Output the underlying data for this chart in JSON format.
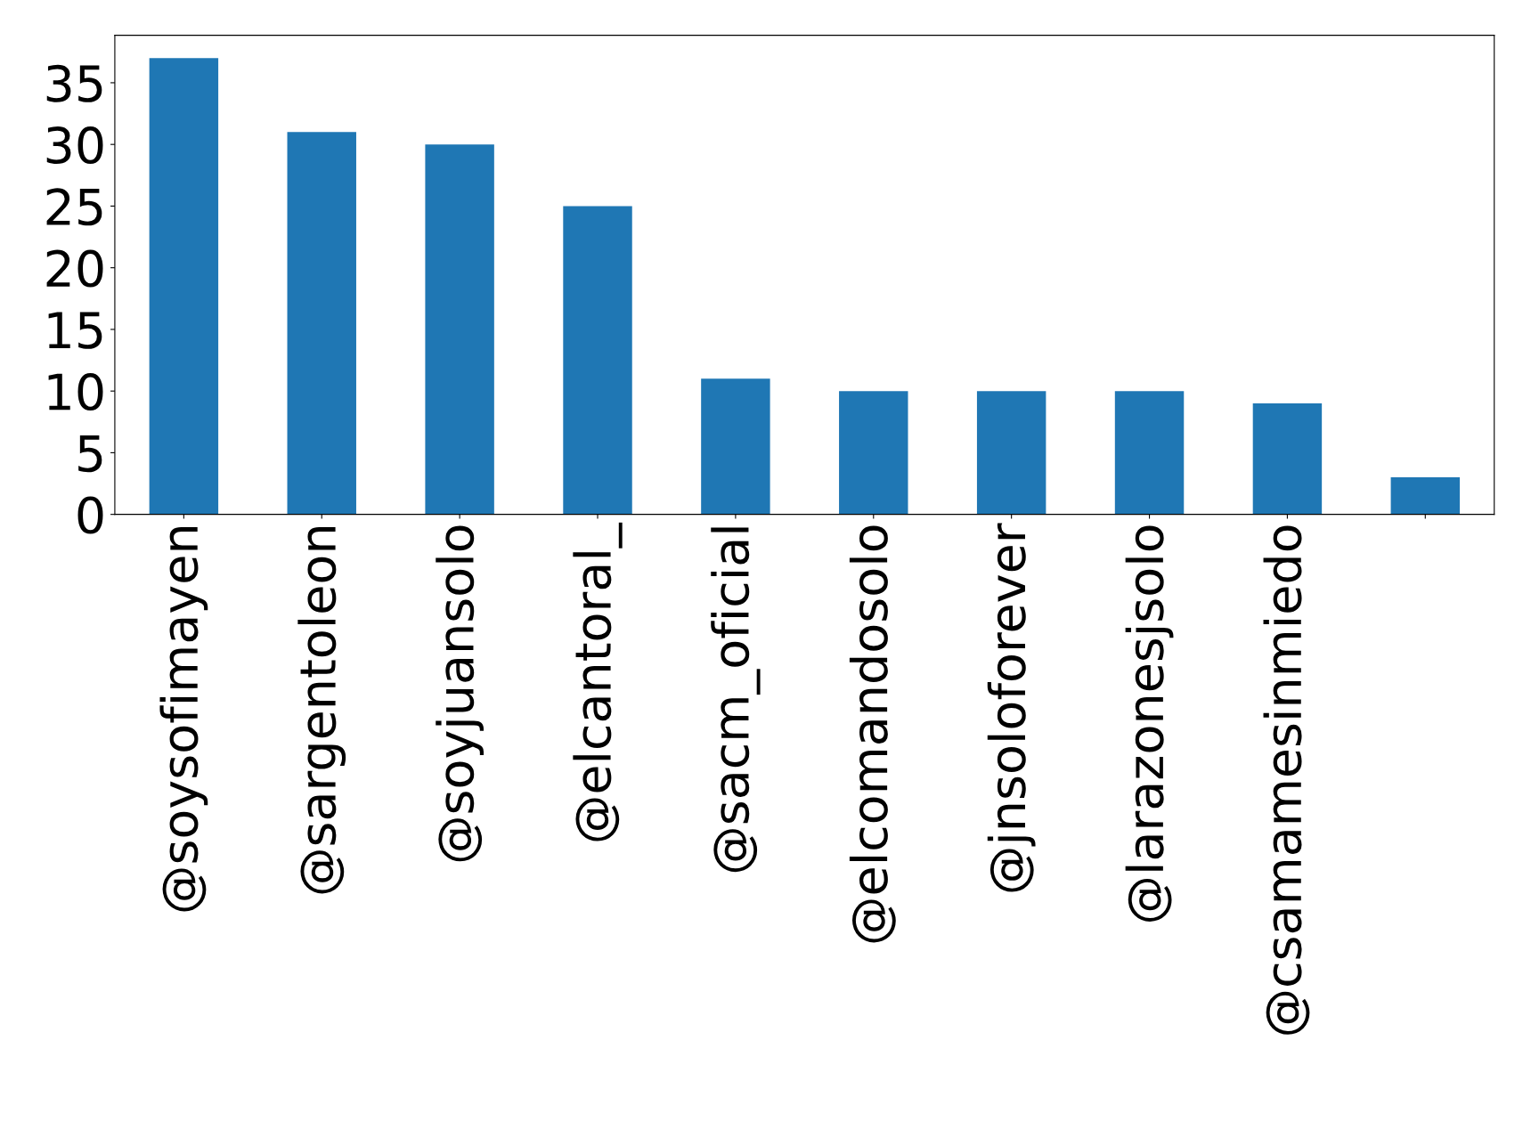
{
  "chart_data": {
    "type": "bar",
    "categories": [
      "@soysofimayen",
      "@sargentoleon",
      "@soyjuansolo",
      "@elcantoral_",
      "@sacm_oficial",
      "@elcomandosolo",
      "@jnsoloforever",
      "@larazonesjsolo",
      "@csamamesinmiedo",
      null
    ],
    "values": [
      37,
      31,
      30,
      25,
      11,
      10,
      10,
      10,
      9,
      3
    ],
    "color": "#1f77b4",
    "ylim": [
      0,
      38.85
    ],
    "yticks": [
      0,
      5,
      10,
      15,
      20,
      25,
      30,
      35
    ],
    "grid": false
  }
}
